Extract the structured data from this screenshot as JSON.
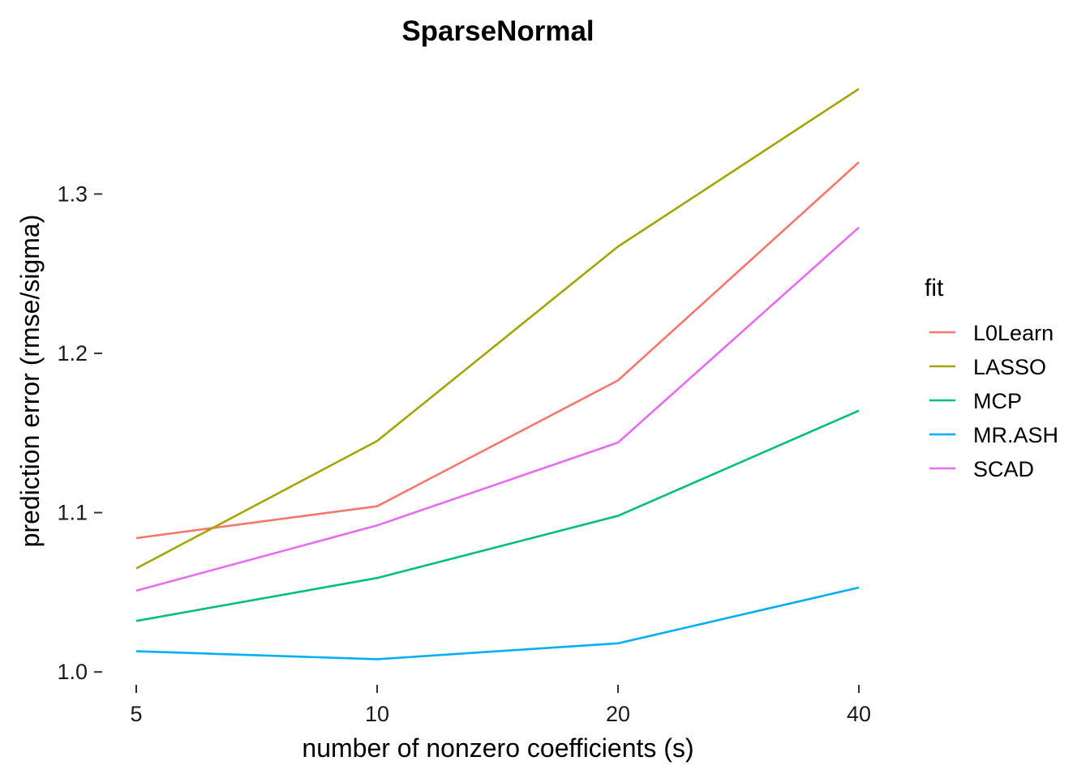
{
  "chart_data": {
    "type": "line",
    "title": "SparseNormal",
    "xlabel": "number of nonzero coefficients (s)",
    "ylabel": "prediction error (rmse/sigma)",
    "x_scale": "log2",
    "x": [
      5,
      10,
      20,
      40
    ],
    "x_tick_labels": [
      "5",
      "10",
      "20",
      "40"
    ],
    "y_ticks": [
      1.0,
      1.1,
      1.2,
      1.3
    ],
    "y_tick_labels": [
      "1.0",
      "1.1",
      "1.2",
      "1.3"
    ],
    "ylim": [
      0.996,
      1.376
    ],
    "grid": false,
    "legend": {
      "title": "fit",
      "position": "right"
    },
    "series": [
      {
        "name": "L0Learn",
        "color": "#F8766D",
        "values": [
          1.084,
          1.104,
          1.183,
          1.32
        ]
      },
      {
        "name": "LASSO",
        "color": "#A3A500",
        "values": [
          1.065,
          1.145,
          1.267,
          1.366
        ]
      },
      {
        "name": "MCP",
        "color": "#00BF7D",
        "values": [
          1.032,
          1.059,
          1.098,
          1.164
        ]
      },
      {
        "name": "MR.ASH",
        "color": "#00B0F6",
        "values": [
          1.013,
          1.008,
          1.018,
          1.053
        ]
      },
      {
        "name": "SCAD",
        "color": "#E76BF3",
        "values": [
          1.051,
          1.092,
          1.144,
          1.279
        ]
      }
    ]
  }
}
